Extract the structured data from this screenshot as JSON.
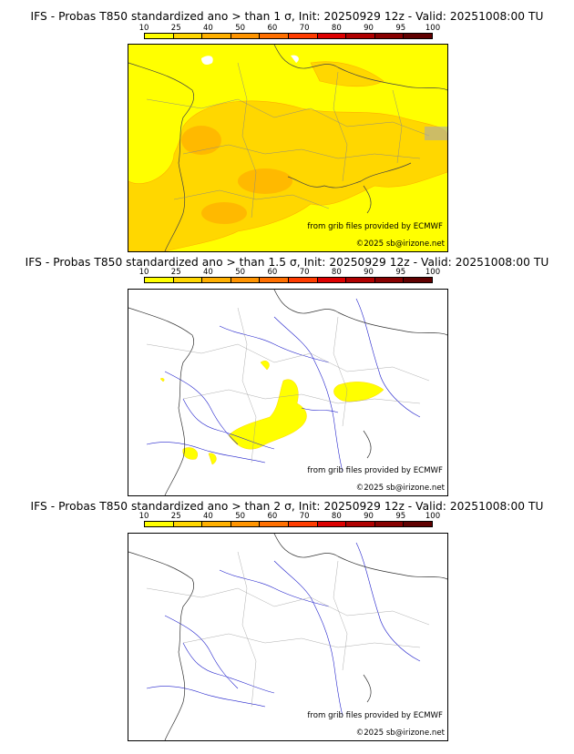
{
  "colorbar": {
    "ticks": [
      "10",
      "25",
      "40",
      "50",
      "60",
      "70",
      "80",
      "90",
      "95",
      "100"
    ],
    "colors": [
      "#ffff00",
      "#ffd700",
      "#ffb000",
      "#ff9400",
      "#ff6f00",
      "#ff3c00",
      "#dd0000",
      "#b00000",
      "#880000",
      "#600000"
    ]
  },
  "credits": {
    "grib": "from grib files provided by ECMWF",
    "copyright": "©2025 sb@irizone.net"
  },
  "panels": [
    {
      "title": "IFS - Probas T850  standardized ano > than 1 σ, Init: 20250929 12z - Valid: 20251008:00 TU",
      "coverage": "high"
    },
    {
      "title": "IFS - Probas T850  standardized ano > than 1.5 σ, Init: 20250929 12z - Valid: 20251008:00 TU",
      "coverage": "medium"
    },
    {
      "title": "IFS - Probas T850  standardized ano > than 2 σ, Init: 20250929 12z - Valid: 20251008:00 TU",
      "coverage": "none"
    }
  ]
}
